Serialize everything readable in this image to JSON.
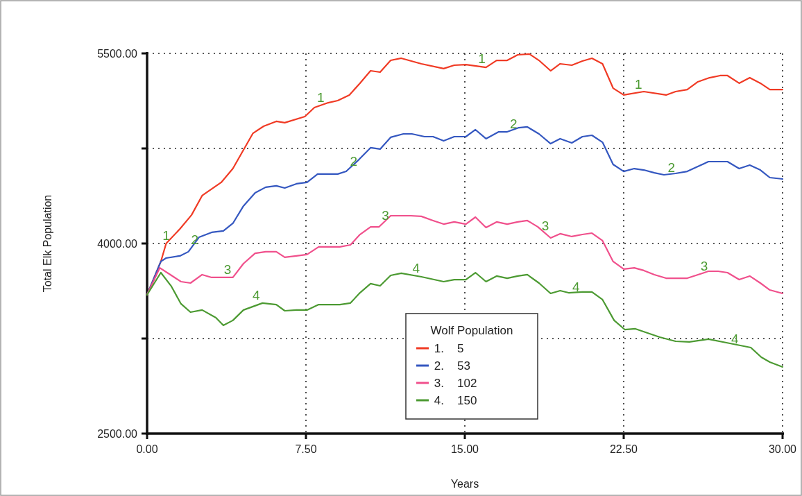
{
  "chart_data": {
    "type": "line",
    "xlabel": "Years",
    "ylabel": "Total Elk Population",
    "legend_title": "Wolf Population",
    "xlim": [
      0,
      30
    ],
    "ylim": [
      2500,
      5500
    ],
    "xticks": [
      {
        "value": 0,
        "label": "0.00"
      },
      {
        "value": 7.5,
        "label": "7.50"
      },
      {
        "value": 15,
        "label": "15.00"
      },
      {
        "value": 22.5,
        "label": "22.50"
      },
      {
        "value": 30,
        "label": "30.00"
      }
    ],
    "yticks": [
      {
        "value": 2500,
        "label": "2500.00"
      },
      {
        "value": 3250,
        "label": null
      },
      {
        "value": 4000,
        "label": "4000.00"
      },
      {
        "value": 4750,
        "label": null
      },
      {
        "value": 5500,
        "label": "5500.00"
      }
    ],
    "grid": true,
    "legend": "bottom",
    "line_style": "solid",
    "marker": "none",
    "series": [
      {
        "name": "1. 5",
        "color": "#f03a24",
        "x": [
          0,
          0.65,
          0.9,
          1.55,
          2.1,
          2.6,
          3.5,
          4.05,
          5.0,
          5.5,
          6.1,
          6.5,
          7.45,
          7.9,
          8.55,
          9.0,
          9.55,
          10.05,
          10.55,
          11.0,
          11.5,
          12.0,
          12.95,
          14.0,
          14.5,
          15.05,
          16.0,
          16.5,
          17.0,
          17.5,
          18.05,
          18.5,
          19.05,
          19.5,
          20.05,
          20.55,
          21.0,
          21.5,
          22.0,
          22.5,
          23.45,
          24.5,
          24.95,
          25.5,
          26.0,
          26.55,
          27.05,
          27.4,
          27.95,
          28.45,
          28.95,
          29.4,
          30
        ],
        "values": [
          3595,
          3858,
          4000,
          4115,
          4225,
          4378,
          4482,
          4591,
          4870,
          4925,
          4964,
          4953,
          5002,
          5073,
          5111,
          5128,
          5172,
          5265,
          5363,
          5352,
          5445,
          5462,
          5418,
          5380,
          5407,
          5412,
          5390,
          5445,
          5445,
          5489,
          5495,
          5445,
          5363,
          5418,
          5407,
          5440,
          5462,
          5418,
          5226,
          5172,
          5199,
          5172,
          5199,
          5215,
          5276,
          5308,
          5325,
          5325,
          5265,
          5308,
          5265,
          5215,
          5215
        ]
      },
      {
        "name": "2. 53",
        "color": "#3457c0",
        "x": [
          0,
          0.65,
          0.9,
          1.55,
          1.95,
          2.45,
          3.05,
          3.6,
          4.05,
          4.55,
          5.1,
          5.6,
          6.1,
          6.5,
          7.05,
          7.55,
          8.05,
          9.0,
          9.4,
          10.0,
          10.55,
          11.0,
          11.5,
          12.1,
          12.5,
          13.1,
          13.5,
          14.0,
          14.5,
          15.05,
          15.5,
          16.0,
          16.6,
          17.0,
          17.55,
          17.95,
          18.5,
          19.05,
          19.5,
          20.05,
          20.55,
          21.0,
          21.5,
          22.0,
          22.5,
          23.0,
          23.45,
          23.95,
          24.4,
          24.95,
          25.5,
          26.0,
          26.5,
          27.4,
          27.95,
          28.45,
          28.95,
          29.4,
          30
        ],
        "values": [
          3595,
          3858,
          3885,
          3902,
          3935,
          4049,
          4088,
          4099,
          4159,
          4296,
          4400,
          4444,
          4455,
          4438,
          4471,
          4482,
          4548,
          4548,
          4569,
          4662,
          4756,
          4745,
          4838,
          4865,
          4865,
          4843,
          4843,
          4810,
          4843,
          4843,
          4898,
          4827,
          4881,
          4881,
          4914,
          4920,
          4865,
          4788,
          4827,
          4794,
          4843,
          4854,
          4799,
          4624,
          4569,
          4591,
          4580,
          4558,
          4542,
          4553,
          4569,
          4608,
          4646,
          4646,
          4591,
          4619,
          4580,
          4520,
          4509
        ]
      },
      {
        "name": "3. 102",
        "color": "#f0508c",
        "x": [
          0,
          0.6,
          1.15,
          1.6,
          2.05,
          2.6,
          3.05,
          4.05,
          4.55,
          5.1,
          5.6,
          6.1,
          6.5,
          7.05,
          7.55,
          8.1,
          9.1,
          9.6,
          10.05,
          10.55,
          10.95,
          11.5,
          12.45,
          12.95,
          13.5,
          14.0,
          14.5,
          15.05,
          15.5,
          16.0,
          16.5,
          17.0,
          17.5,
          17.95,
          18.45,
          19.05,
          19.5,
          20.05,
          20.55,
          21.0,
          21.5,
          22.0,
          22.5,
          23.0,
          23.45,
          23.95,
          24.5,
          25.5,
          26.5,
          26.95,
          27.4,
          27.95,
          28.45,
          28.95,
          29.4,
          30
        ],
        "values": [
          3595,
          3808,
          3748,
          3699,
          3688,
          3754,
          3732,
          3732,
          3841,
          3923,
          3935,
          3935,
          3891,
          3902,
          3913,
          3973,
          3973,
          3989,
          4071,
          4131,
          4131,
          4219,
          4219,
          4214,
          4181,
          4153,
          4170,
          4153,
          4208,
          4126,
          4170,
          4153,
          4170,
          4181,
          4131,
          4044,
          4077,
          4055,
          4071,
          4082,
          4022,
          3858,
          3798,
          3808,
          3787,
          3754,
          3726,
          3726,
          3781,
          3781,
          3770,
          3715,
          3743,
          3688,
          3633,
          3606
        ]
      },
      {
        "name": "4. 150",
        "color": "#4c9a32",
        "x": [
          0,
          0.65,
          1.15,
          1.6,
          2.05,
          2.6,
          3.25,
          3.6,
          4.05,
          4.55,
          5.45,
          6.1,
          6.5,
          7.05,
          7.55,
          8.1,
          9.1,
          9.6,
          10.05,
          10.55,
          11.0,
          11.5,
          12.0,
          12.95,
          14.0,
          14.5,
          15.05,
          15.5,
          16.0,
          16.5,
          17.0,
          17.5,
          17.95,
          18.5,
          19.05,
          19.5,
          19.9,
          20.55,
          21.0,
          21.5,
          22.05,
          22.55,
          23.05,
          24.2,
          24.95,
          25.6,
          26.5,
          27.35,
          28.5,
          29.0,
          29.4,
          30
        ],
        "values": [
          3595,
          3770,
          3661,
          3524,
          3458,
          3475,
          3414,
          3354,
          3393,
          3475,
          3530,
          3518,
          3469,
          3475,
          3475,
          3518,
          3518,
          3530,
          3611,
          3683,
          3666,
          3748,
          3765,
          3737,
          3699,
          3715,
          3715,
          3770,
          3699,
          3743,
          3726,
          3743,
          3754,
          3688,
          3606,
          3628,
          3611,
          3617,
          3617,
          3557,
          3393,
          3321,
          3327,
          3261,
          3228,
          3223,
          3245,
          3217,
          3179,
          3102,
          3064,
          3026
        ]
      }
    ],
    "annotations": [
      {
        "text": "1",
        "x": 0.9,
        "y": 4000
      },
      {
        "text": "1",
        "x": 8.2,
        "y": 5090
      },
      {
        "text": "1",
        "x": 15.8,
        "y": 5395
      },
      {
        "text": "1",
        "x": 23.2,
        "y": 5193
      },
      {
        "text": "2",
        "x": 2.25,
        "y": 3967
      },
      {
        "text": "2",
        "x": 9.75,
        "y": 4586
      },
      {
        "text": "2",
        "x": 17.3,
        "y": 4881
      },
      {
        "text": "2",
        "x": 24.75,
        "y": 4537
      },
      {
        "text": "3",
        "x": 3.8,
        "y": 3732
      },
      {
        "text": "3",
        "x": 11.25,
        "y": 4159
      },
      {
        "text": "3",
        "x": 18.8,
        "y": 4077
      },
      {
        "text": "3",
        "x": 26.3,
        "y": 3759
      },
      {
        "text": "4",
        "x": 5.15,
        "y": 3530
      },
      {
        "text": "4",
        "x": 12.7,
        "y": 3743
      },
      {
        "text": "4",
        "x": 20.25,
        "y": 3595
      },
      {
        "text": "4",
        "x": 27.75,
        "y": 3185
      }
    ]
  }
}
